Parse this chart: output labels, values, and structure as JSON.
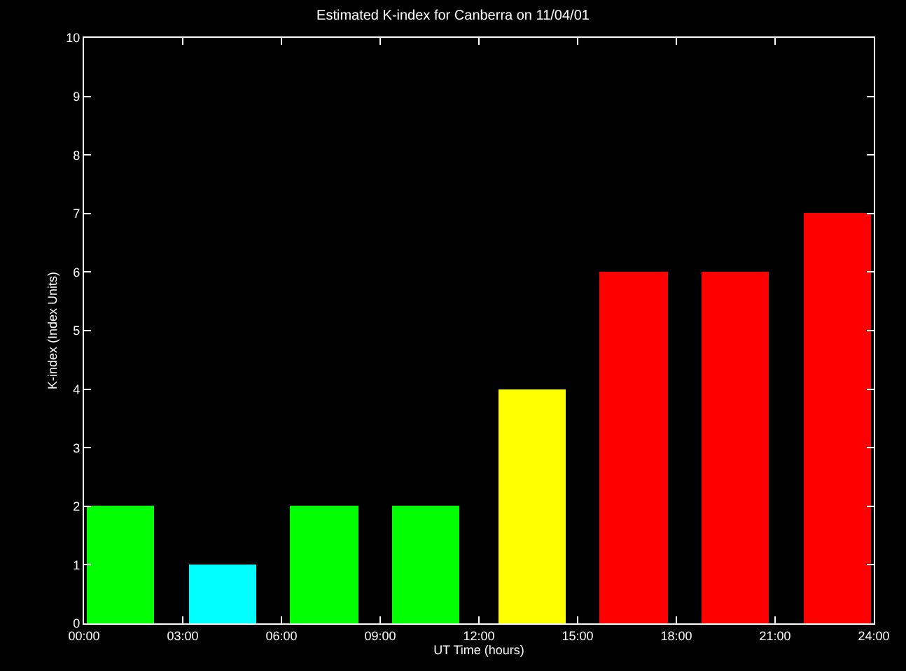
{
  "chart_data": {
    "type": "bar",
    "title": "Estimated K-index for Canberra on 11/04/01",
    "xlabel": "UT Time (hours)",
    "ylabel": "K-index (Index Units)",
    "x": [
      1.1,
      4.2,
      7.3,
      10.4,
      13.6,
      16.7,
      19.8,
      22.9
    ],
    "values": [
      2,
      1,
      2,
      2,
      4,
      6,
      6,
      7
    ],
    "colors": [
      "#00ff00",
      "#00ffff",
      "#00ff00",
      "#00ff00",
      "#ffff00",
      "#ff0000",
      "#ff0000",
      "#ff0000"
    ],
    "xlim": [
      0,
      24
    ],
    "xticks": [
      {
        "value": 0,
        "label": "00:00"
      },
      {
        "value": 3,
        "label": "03:00"
      },
      {
        "value": 6,
        "label": "06:00"
      },
      {
        "value": 9,
        "label": "09:00"
      },
      {
        "value": 12,
        "label": "12:00"
      },
      {
        "value": 15,
        "label": "15:00"
      },
      {
        "value": 18,
        "label": "18:00"
      },
      {
        "value": 21,
        "label": "21:00"
      },
      {
        "value": 24,
        "label": "24:00"
      }
    ],
    "ylim": [
      0,
      10
    ],
    "yticks": [
      0,
      1,
      2,
      3,
      4,
      5,
      6,
      7,
      8,
      9,
      10
    ],
    "grid": false,
    "legend": false
  }
}
